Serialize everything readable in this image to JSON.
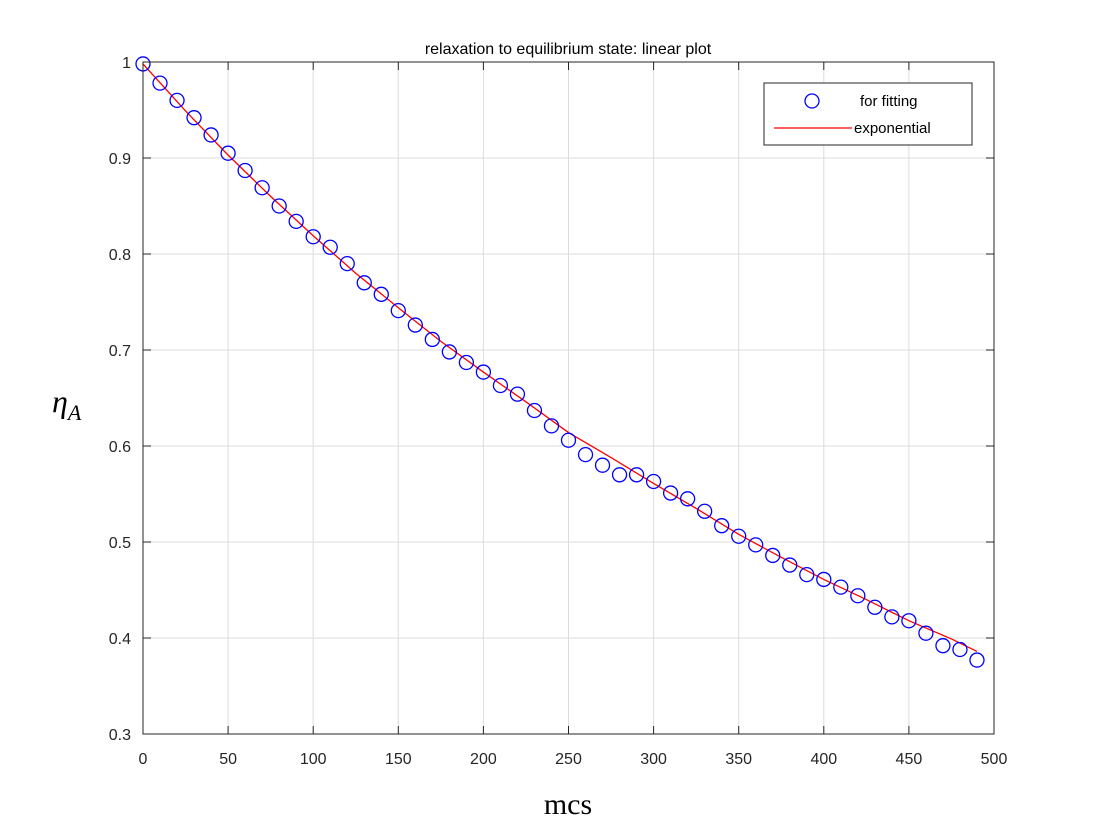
{
  "chart_data": {
    "type": "scatter",
    "title": "relaxation to equilibrium state: linear plot",
    "xlabel": "mcs",
    "ylabel": "η",
    "ylabel_subscript": "A",
    "xlim": [
      0,
      500
    ],
    "ylim": [
      0.3,
      1.0
    ],
    "xticks": [
      0,
      50,
      100,
      150,
      200,
      250,
      300,
      350,
      400,
      450,
      500
    ],
    "yticks": [
      0.3,
      0.4,
      0.5,
      0.6,
      0.7,
      0.8,
      0.9,
      1.0
    ],
    "ytick_labels": [
      "0.3",
      "0.4",
      "0.5",
      "0.6",
      "0.7",
      "0.8",
      "0.9",
      "1"
    ],
    "grid": true,
    "legend_position": "top-right",
    "series": [
      {
        "name": "for fitting",
        "kind": "markers",
        "marker": "circle",
        "color": "#0000ff",
        "x": [
          0,
          10,
          20,
          30,
          40,
          50,
          60,
          70,
          80,
          90,
          100,
          110,
          120,
          130,
          140,
          150,
          160,
          170,
          180,
          190,
          200,
          210,
          220,
          230,
          240,
          250,
          260,
          270,
          280,
          290,
          300,
          310,
          320,
          330,
          340,
          350,
          360,
          370,
          380,
          390,
          400,
          410,
          420,
          430,
          440,
          450,
          460,
          470,
          480,
          490
        ],
        "y": [
          0.998,
          0.978,
          0.96,
          0.942,
          0.924,
          0.905,
          0.887,
          0.869,
          0.85,
          0.834,
          0.818,
          0.807,
          0.79,
          0.77,
          0.758,
          0.741,
          0.726,
          0.711,
          0.698,
          0.687,
          0.677,
          0.663,
          0.654,
          0.637,
          0.621,
          0.606,
          0.591,
          0.58,
          0.57,
          0.57,
          0.563,
          0.551,
          0.545,
          0.532,
          0.517,
          0.506,
          0.497,
          0.486,
          0.476,
          0.466,
          0.461,
          0.453,
          0.444,
          0.432,
          0.422,
          0.418,
          0.405,
          0.392,
          0.388,
          0.377
        ]
      },
      {
        "name": "exponential",
        "kind": "line",
        "color": "#ff0000",
        "x": [
          0,
          25,
          50,
          75,
          100,
          125,
          150,
          175,
          200,
          225,
          250,
          275,
          300,
          325,
          350,
          375,
          400,
          425,
          450,
          475,
          490
        ],
        "y": [
          0.998,
          0.949,
          0.903,
          0.86,
          0.819,
          0.78,
          0.744,
          0.709,
          0.677,
          0.646,
          0.614,
          0.588,
          0.561,
          0.535,
          0.508,
          0.484,
          0.461,
          0.44,
          0.418,
          0.399,
          0.386
        ]
      }
    ]
  }
}
